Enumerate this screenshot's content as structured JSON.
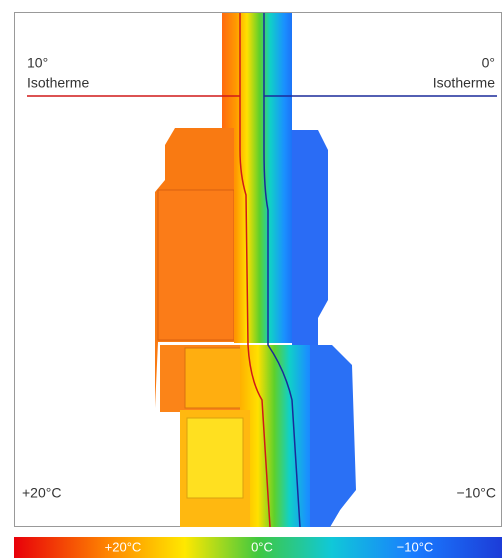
{
  "left_top": {
    "value": "10°",
    "name": "Isotherme"
  },
  "right_top": {
    "value": "0°",
    "name": "Isotherme"
  },
  "left_bottom": "+20°C",
  "right_bottom": "−10°C",
  "colorbar": {
    "labels": [
      "+20°C",
      "0°C",
      "−10°C"
    ]
  }
}
